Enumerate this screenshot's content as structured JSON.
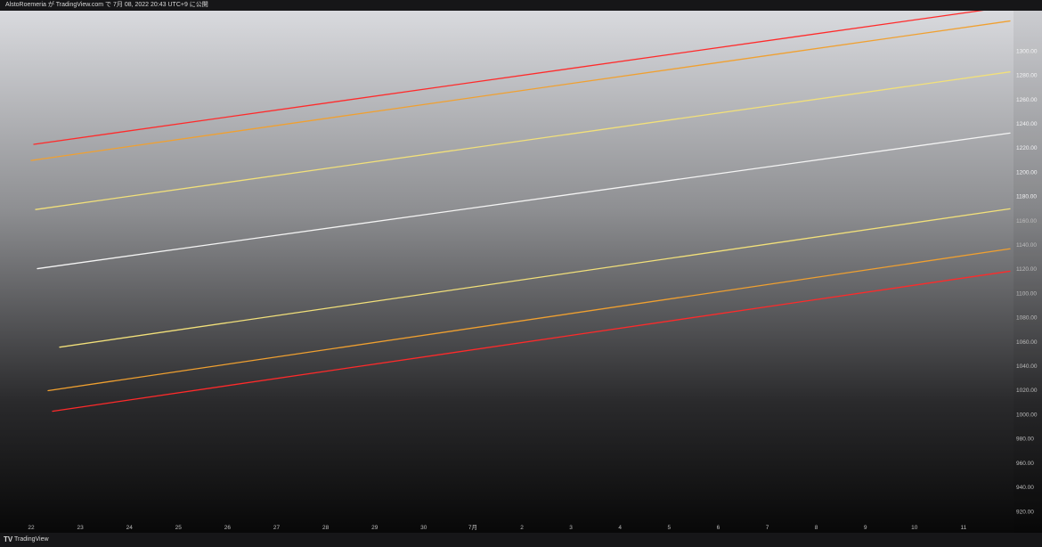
{
  "header": {
    "caption": "AlstoRoemeria が TradingView.com で 7月 08, 2022 20:43 UTC+9 に公開"
  },
  "chart_data": {
    "type": "line",
    "x_tick_labels": [
      "22",
      "23",
      "24",
      "25",
      "26",
      "27",
      "28",
      "29",
      "30",
      "7月",
      "2",
      "3",
      "4",
      "5",
      "6",
      "7",
      "8",
      "9",
      "10",
      "11"
    ],
    "y_tick_labels": [
      "920.00",
      "940.00",
      "960.00",
      "980.00",
      "1000.00",
      "1020.00",
      "1040.00",
      "1060.00",
      "1080.00",
      "1100.00",
      "1120.00",
      "1140.00",
      "1160.00",
      "1180.00",
      "1200.00",
      "1220.00",
      "1240.00",
      "1260.00",
      "1280.00",
      "1300.00"
    ],
    "x_range": [
      0,
      19
    ],
    "ylim": [
      911,
      1333
    ],
    "grid": false,
    "legend": "none",
    "series": [
      {
        "color": "#ff2a2a",
        "x": [
          0,
          19
        ],
        "y": [
          1222.5,
          1336.5
        ]
      },
      {
        "color": "#f0a030",
        "x": [
          0,
          19
        ],
        "y": [
          1209.5,
          1324.5
        ]
      },
      {
        "color": "#f2e07a",
        "x": [
          0,
          19
        ],
        "y": [
          1168.5,
          1282.5
        ]
      },
      {
        "color": "#f4f4f4",
        "x": [
          0,
          19
        ],
        "y": [
          1119.5,
          1232.0
        ]
      },
      {
        "color": "#f2e07a",
        "x": [
          0,
          19
        ],
        "y": [
          1052.0,
          1169.5
        ]
      },
      {
        "color": "#f0a030",
        "x": [
          0,
          19
        ],
        "y": [
          1017.5,
          1136.5
        ]
      },
      {
        "color": "#ff2a2a",
        "x": [
          0,
          19
        ],
        "y": [
          1000.0,
          1118.0
        ]
      }
    ]
  },
  "footer": {
    "logo": "TV",
    "brand": "TradingView"
  }
}
